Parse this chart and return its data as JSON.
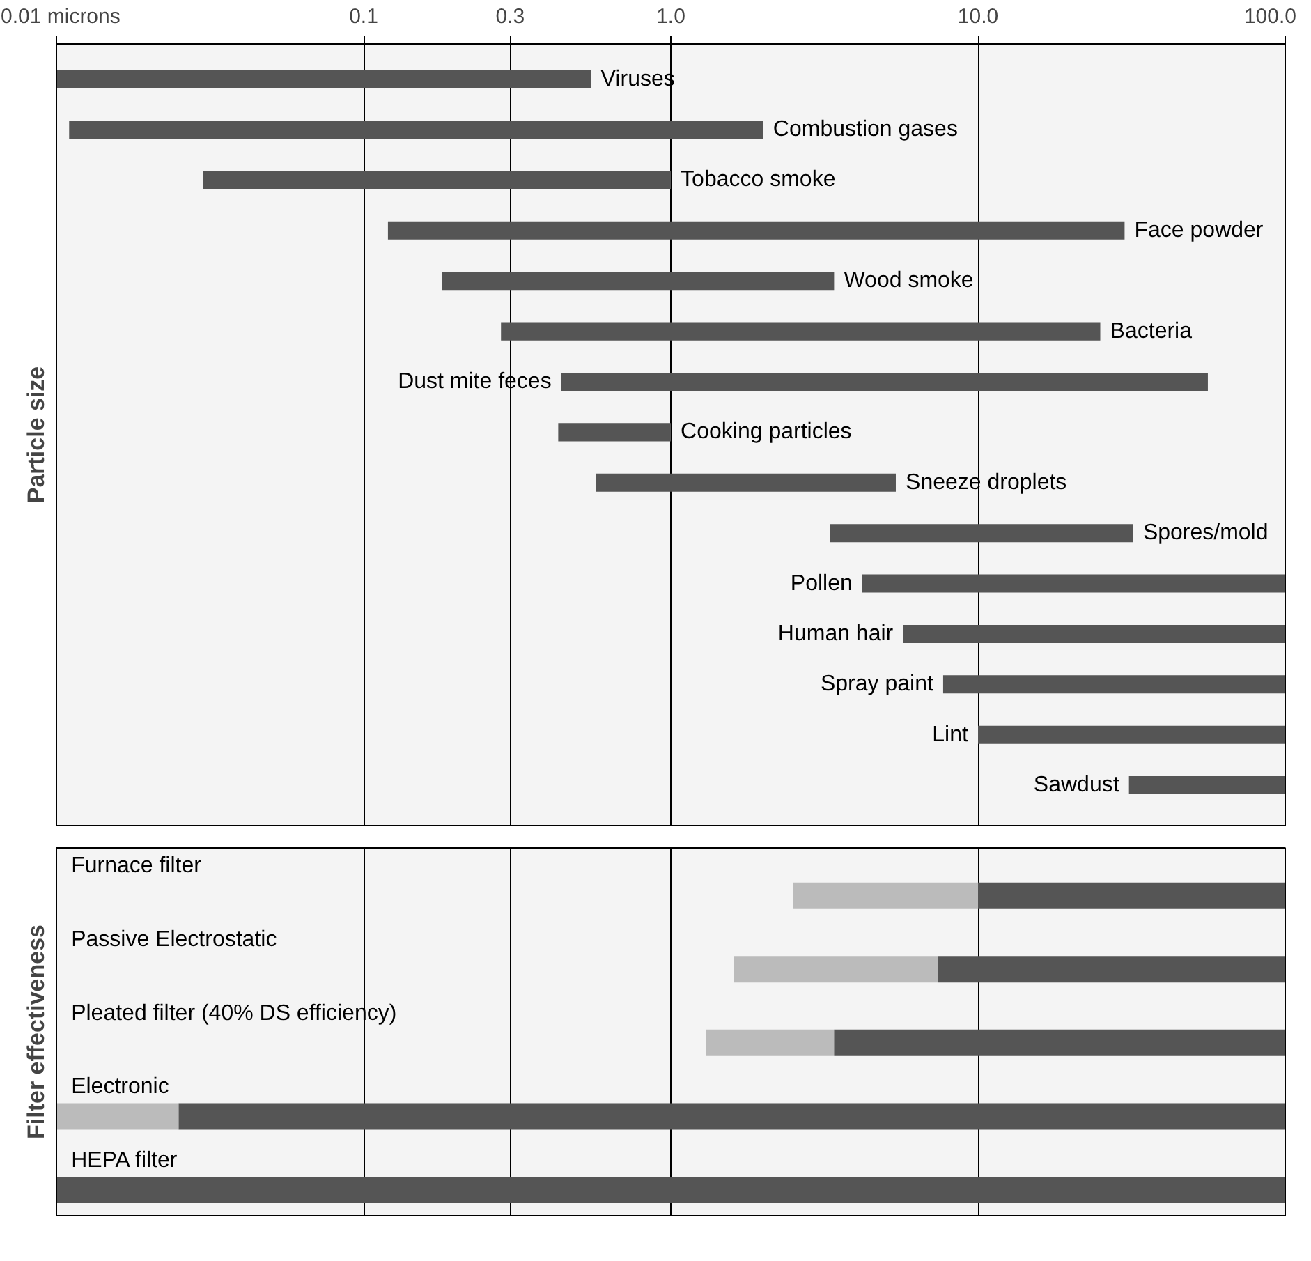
{
  "chart_data": [
    {
      "type": "bar",
      "orientation": "horizontal",
      "ylabel": "Particle size",
      "categories": [
        "Viruses",
        "Combustion gases",
        "Tobacco smoke",
        "Face powder",
        "Wood smoke",
        "Bacteria",
        "Dust mite feces",
        "Cooking particles",
        "Sneeze droplets",
        "Spores/mold",
        "Pollen",
        "Human hair",
        "Spray paint",
        "Lint",
        "Sawdust"
      ],
      "base": [
        0.01,
        0.011,
        0.03,
        0.12,
        0.18,
        0.28,
        0.44,
        0.43,
        0.57,
        3.3,
        4.2,
        5.7,
        7.7,
        10,
        31
      ],
      "values": [
        0.54,
        1.989,
        0.97,
        29.88,
        3.22,
        24.72,
        55.56,
        0.57,
        4.83,
        28.7,
        95.8,
        94.3,
        92.3,
        90,
        69
      ],
      "color": "#555555",
      "log": "x",
      "xlim": [
        0.01,
        100
      ],
      "xticks": [
        {
          "value": 0.01,
          "label": "0.01 microns"
        },
        0.1,
        0.3,
        {
          "value": 1,
          "label": "1.0"
        },
        {
          "value": 10,
          "label": "10.0"
        },
        {
          "value": 100,
          "label": "100.0"
        }
      ],
      "grid": "x"
    },
    {
      "type": "bar",
      "orientation": "horizontal",
      "ylabel": "Filter effectiveness",
      "categories": [
        "Furnace filter",
        "Passive Electrostatic",
        "Pleated filter (40% DS efficiency)",
        "Electronic",
        "HEPA filter"
      ],
      "series": [
        {
          "color": "#bbbbbb",
          "base": [
            2.5,
            1.6,
            1.3,
            0.01,
            null
          ],
          "values": [
            7.5,
            5.8,
            2.1,
            0.015,
            null
          ]
        },
        {
          "color": "#555555",
          "base": [
            10,
            7.4,
            3.4,
            0.025,
            0.01
          ],
          "values": [
            90,
            92.6,
            96.6,
            99.975,
            99.99
          ]
        }
      ],
      "log": "x",
      "xlim": [
        0.01,
        100
      ],
      "xticks": [
        0.01,
        0.1,
        0.3,
        1,
        10,
        100
      ],
      "tick_labels": false,
      "grid": "x"
    }
  ]
}
